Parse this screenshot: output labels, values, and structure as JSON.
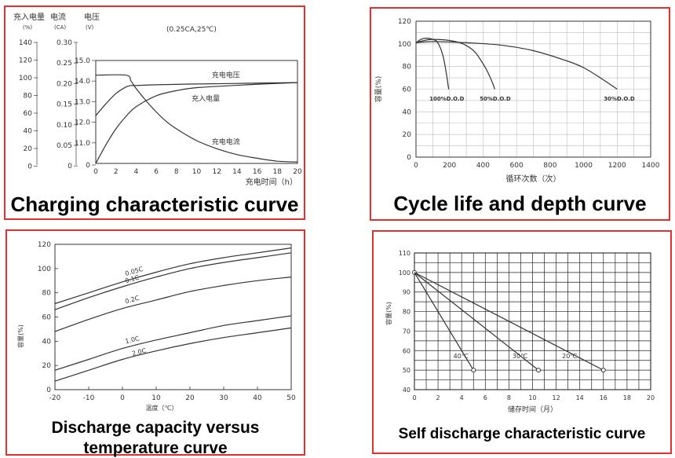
{
  "chart_data": [
    {
      "id": "charging",
      "type": "line",
      "caption": "Charging characteristic curve",
      "condition": "(0.25CA,25℃)",
      "xlabel": "充电时间（h）",
      "x_ticks": [
        0,
        2,
        4,
        6,
        8,
        10,
        12,
        14,
        16,
        18,
        20
      ],
      "xlim": [
        0,
        20
      ],
      "axes": [
        {
          "header": "充入电量",
          "unit": "(%)",
          "ticks": [
            "140",
            "120",
            "100",
            "80",
            "60",
            "40",
            "20",
            "0"
          ]
        },
        {
          "header": "电流",
          "unit": "(CA)",
          "ticks": [
            "0.30",
            "0.25",
            "0.20",
            "0.15",
            "0.10",
            "0.05",
            "0"
          ]
        },
        {
          "header": "电压",
          "unit": "(V)",
          "ticks": [
            "15.0",
            "14.0",
            "13.0",
            "12.0",
            "11.0",
            "0"
          ]
        }
      ],
      "ylim": [
        0,
        140
      ],
      "series": [
        {
          "name": "充电电压",
          "label": "充电电压",
          "points": [
            [
              0,
              65
            ],
            [
              1,
              81
            ],
            [
              2,
              95
            ],
            [
              3,
              104
            ],
            [
              3.5,
              106
            ],
            [
              4,
              106
            ],
            [
              6,
              107
            ],
            [
              10,
              108
            ],
            [
              15,
              109
            ],
            [
              20,
              110
            ]
          ]
        },
        {
          "name": "充入电量",
          "label": "充入电量",
          "points": [
            [
              0,
              0
            ],
            [
              1,
              25
            ],
            [
              2,
              47
            ],
            [
              3,
              64
            ],
            [
              4,
              77
            ],
            [
              6,
              92
            ],
            [
              8,
              99
            ],
            [
              10,
              103
            ],
            [
              15,
              107
            ],
            [
              20,
              110
            ]
          ]
        },
        {
          "name": "充电电流",
          "label": "充电电流",
          "points": [
            [
              0,
              120
            ],
            [
              3,
              120
            ],
            [
              3.5,
              112
            ],
            [
              4,
              102
            ],
            [
              5,
              85
            ],
            [
              6,
              70
            ],
            [
              7,
              57
            ],
            [
              8,
              47
            ],
            [
              10,
              31
            ],
            [
              12,
              20
            ],
            [
              14,
              12
            ],
            [
              16,
              7
            ],
            [
              18,
              3
            ],
            [
              20,
              2
            ]
          ]
        }
      ],
      "labels": [
        {
          "text": "充电电压",
          "x": 11.5,
          "y": 117
        },
        {
          "text": "充入电量",
          "x": 9.5,
          "y": 85
        },
        {
          "text": "充电电流",
          "x": 11.5,
          "y": 26
        }
      ]
    },
    {
      "id": "cycle",
      "type": "line",
      "caption": "Cycle life and depth curve",
      "xlabel": "循环次数（次）",
      "ylabel": "容量(%)",
      "x_ticks": [
        0,
        200,
        400,
        600,
        800,
        1000,
        1200,
        1400
      ],
      "y_ticks": [
        0,
        20,
        40,
        60,
        80,
        100,
        120
      ],
      "xlim": [
        0,
        1400
      ],
      "ylim": [
        0,
        120
      ],
      "series": [
        {
          "name": "100%D.O.D",
          "label": "100%D.O.D",
          "points": [
            [
              0,
              101
            ],
            [
              30,
              104
            ],
            [
              60,
              105
            ],
            [
              100,
              104
            ],
            [
              130,
              101
            ],
            [
              160,
              90
            ],
            [
              180,
              75
            ],
            [
              195,
              60
            ]
          ]
        },
        {
          "name": "50%D.O.D",
          "label": "50%D.O.D",
          "points": [
            [
              0,
              101
            ],
            [
              50,
              103
            ],
            [
              100,
              104
            ],
            [
              200,
              103
            ],
            [
              280,
              100
            ],
            [
              350,
              93
            ],
            [
              410,
              80
            ],
            [
              450,
              68
            ],
            [
              470,
              60
            ]
          ]
        },
        {
          "name": "30%D.O.D",
          "label": "30%D.O.D",
          "points": [
            [
              0,
              101
            ],
            [
              100,
              102
            ],
            [
              300,
              101
            ],
            [
              500,
              99
            ],
            [
              700,
              94
            ],
            [
              900,
              85
            ],
            [
              1000,
              79
            ],
            [
              1100,
              70
            ],
            [
              1200,
              60
            ]
          ]
        }
      ],
      "labels": [
        {
          "text": "100%D.O.D",
          "x": 80,
          "y": 50
        },
        {
          "text": "50%D.O.D",
          "x": 380,
          "y": 50
        },
        {
          "text": "30%D.O.D",
          "x": 1120,
          "y": 50
        }
      ]
    },
    {
      "id": "temperature",
      "type": "line",
      "caption_lines": [
        "Discharge capacity versus",
        "temperature curve"
      ],
      "xlabel": "温度（℃）",
      "ylabel": "容量(%)",
      "x_ticks": [
        -20,
        -10,
        0,
        10,
        20,
        30,
        40,
        50
      ],
      "y_ticks": [
        0,
        20,
        40,
        60,
        80,
        100,
        120
      ],
      "xlim": [
        -20,
        50
      ],
      "ylim": [
        0,
        120
      ],
      "series": [
        {
          "name": "0.05C",
          "label": "0.05C",
          "points": [
            [
              -20,
              71
            ],
            [
              -10,
              80
            ],
            [
              0,
              89
            ],
            [
              10,
              97
            ],
            [
              20,
              104
            ],
            [
              30,
              109
            ],
            [
              40,
              113
            ],
            [
              50,
              117
            ]
          ]
        },
        {
          "name": "0.1C",
          "label": "0.1C",
          "points": [
            [
              -20,
              66
            ],
            [
              -10,
              76
            ],
            [
              0,
              85
            ],
            [
              10,
              93
            ],
            [
              20,
              100
            ],
            [
              30,
              105
            ],
            [
              40,
              109
            ],
            [
              50,
              113
            ]
          ]
        },
        {
          "name": "0.2C",
          "label": "0.2C",
          "points": [
            [
              -20,
              48
            ],
            [
              -10,
              58
            ],
            [
              0,
              67
            ],
            [
              10,
              74
            ],
            [
              20,
              81
            ],
            [
              30,
              86
            ],
            [
              40,
              90
            ],
            [
              50,
              93
            ]
          ]
        },
        {
          "name": "1.0C",
          "label": "1.0C",
          "points": [
            [
              -20,
              16
            ],
            [
              -10,
              25
            ],
            [
              0,
              34
            ],
            [
              10,
              41
            ],
            [
              20,
              47
            ],
            [
              30,
              53
            ],
            [
              40,
              57
            ],
            [
              50,
              61
            ]
          ]
        },
        {
          "name": "2.0C",
          "label": "2.0C",
          "points": [
            [
              -20,
              7
            ],
            [
              -10,
              16
            ],
            [
              0,
              25
            ],
            [
              10,
              32
            ],
            [
              20,
              38
            ],
            [
              30,
              43
            ],
            [
              40,
              47
            ],
            [
              50,
              51
            ]
          ]
        }
      ],
      "labels": [
        {
          "text": "0.05C",
          "x": 1,
          "y": 94,
          "rot": -16
        },
        {
          "text": "0.1C",
          "x": 1,
          "y": 88,
          "rot": -16
        },
        {
          "text": "0.2C",
          "x": 1,
          "y": 71,
          "rot": -16
        },
        {
          "text": "1.0C",
          "x": 1,
          "y": 38,
          "rot": -14
        },
        {
          "text": "2.0C",
          "x": 3,
          "y": 28,
          "rot": -14
        }
      ]
    },
    {
      "id": "selfdischarge",
      "type": "line",
      "caption": "Self discharge characteristic curve",
      "xlabel": "储存时间（月）",
      "ylabel": "容量(%)",
      "x_ticks": [
        0,
        2,
        4,
        6,
        8,
        10,
        12,
        14,
        16,
        18,
        20
      ],
      "y_ticks": [
        40,
        50,
        60,
        70,
        80,
        90,
        100,
        110
      ],
      "xlim": [
        0,
        20
      ],
      "ylim": [
        40,
        110
      ],
      "series": [
        {
          "name": "40℃",
          "label": "40℃",
          "points": [
            [
              0,
              100
            ],
            [
              5,
              50
            ]
          ]
        },
        {
          "name": "30℃",
          "label": "30℃",
          "points": [
            [
              0,
              100
            ],
            [
              10.5,
              50
            ]
          ]
        },
        {
          "name": "20℃",
          "label": "20℃",
          "points": [
            [
              0,
              100
            ],
            [
              16,
              50
            ]
          ]
        }
      ],
      "labels": [
        {
          "text": "40℃",
          "x": 3.3,
          "y": 56
        },
        {
          "text": "30℃",
          "x": 8.3,
          "y": 56
        },
        {
          "text": "20℃",
          "x": 12.5,
          "y": 56
        }
      ]
    }
  ]
}
